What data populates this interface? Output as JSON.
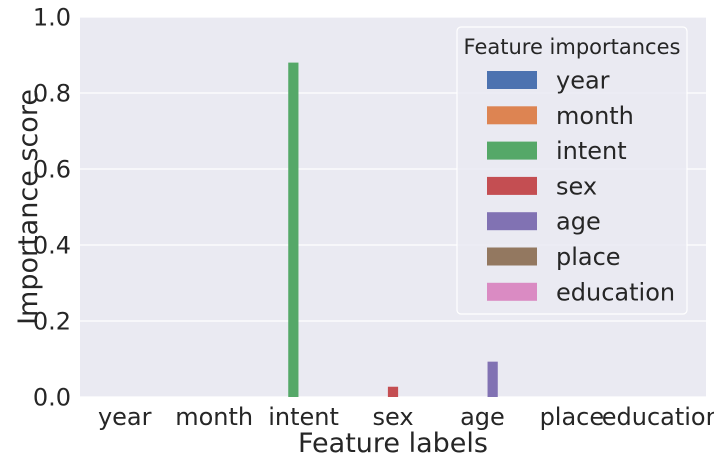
{
  "chart_data": {
    "type": "bar",
    "xlabel": "Feature labels",
    "ylabel": "Importance score",
    "ylim": [
      0,
      1.0
    ],
    "yticks": [
      "0.0",
      "0.2",
      "0.4",
      "0.6",
      "0.8",
      "1.0"
    ],
    "categories": [
      "year",
      "month",
      "intent",
      "sex",
      "age",
      "place",
      "education"
    ],
    "values": [
      0.0,
      0.0,
      0.88,
      0.027,
      0.093,
      0.0,
      0.0
    ],
    "grid": true,
    "legend": {
      "title": "Feature importances",
      "placement": "top-right",
      "entries": [
        "year",
        "month",
        "intent",
        "sex",
        "age",
        "place",
        "education"
      ]
    },
    "colors": [
      "#4c72b0",
      "#dd8452",
      "#55a868",
      "#c44e52",
      "#8172b3",
      "#937860",
      "#da8bc3"
    ],
    "background": "#eaeaf2"
  }
}
